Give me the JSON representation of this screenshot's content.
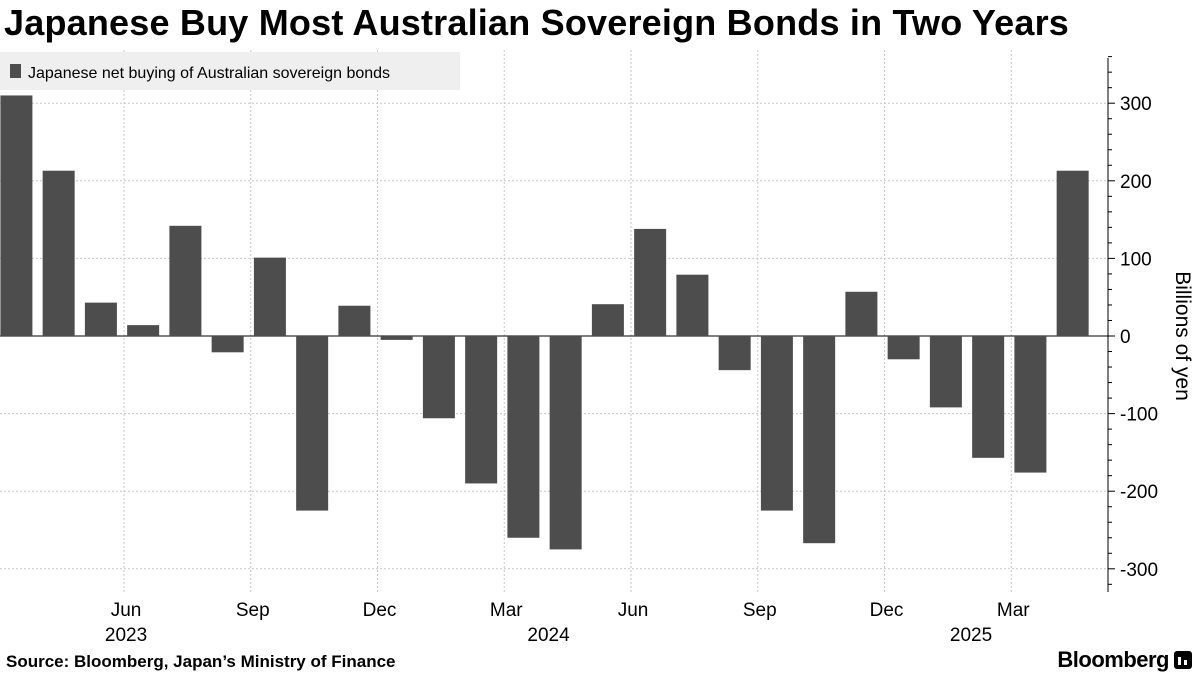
{
  "chart_data": {
    "type": "bar",
    "title": "Japanese Buy Most Australian Sovereign Bonds in Two Years",
    "series": [
      {
        "name": "Japanese net buying of Australian sovereign bonds",
        "color": "#4d4d4d",
        "values": [
          310,
          213,
          43,
          14,
          142,
          -21,
          101,
          -225,
          39,
          -5,
          -106,
          -190,
          -260,
          -275,
          41,
          138,
          79,
          -44,
          -225,
          -267,
          57,
          -30,
          -92,
          -157,
          -176,
          213
        ]
      }
    ],
    "x_tick_labels": [
      {
        "index": 3,
        "label": "Jun"
      },
      {
        "index": 6,
        "label": "Sep"
      },
      {
        "index": 9,
        "label": "Dec"
      },
      {
        "index": 12,
        "label": "Mar"
      },
      {
        "index": 15,
        "label": "Jun"
      },
      {
        "index": 18,
        "label": "Sep"
      },
      {
        "index": 21,
        "label": "Dec"
      },
      {
        "index": 24,
        "label": "Mar"
      }
    ],
    "year_labels": [
      {
        "index": 3,
        "label": "2023"
      },
      {
        "index": 13,
        "label": "2024"
      },
      {
        "index": 23,
        "label": "2025"
      }
    ],
    "yticks": [
      300,
      200,
      100,
      0,
      -100,
      -200,
      -300
    ],
    "ylim": [
      -330,
      360
    ],
    "ylabel": "Billions of yen",
    "xlabel": "",
    "grid": true,
    "legend_position": "top-left"
  },
  "footer": {
    "source": "Source: Bloomberg, Japan’s Ministry of Finance",
    "brand": "Bloomberg"
  }
}
